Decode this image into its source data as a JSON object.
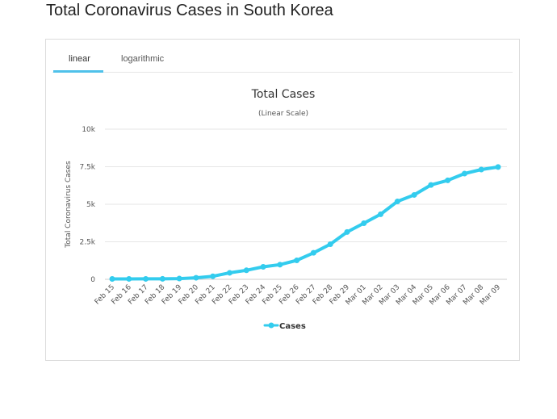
{
  "page": {
    "title": "Total Coronavirus Cases in South Korea"
  },
  "tabs": [
    {
      "label": "linear",
      "active": true
    },
    {
      "label": "logarithmic",
      "active": false
    }
  ],
  "colors": {
    "series": "#33ccee",
    "tab_underline": "#4fc1ea",
    "grid": "#e6e6e6"
  },
  "chart_data": {
    "type": "line",
    "title": "Total Cases",
    "subtitle": "(Linear Scale)",
    "ylabel": "Total Coronavirus Cases",
    "xlabel": "",
    "ylim": [
      0,
      10000
    ],
    "yticks": [
      0,
      2500,
      5000,
      7500,
      10000
    ],
    "ytick_labels": [
      "0",
      "2.5k",
      "5k",
      "7.5k",
      "10k"
    ],
    "grid": true,
    "legend": "bottom-center",
    "categories": [
      "Feb 15",
      "Feb 16",
      "Feb 17",
      "Feb 18",
      "Feb 19",
      "Feb 20",
      "Feb 21",
      "Feb 22",
      "Feb 23",
      "Feb 24",
      "Feb 25",
      "Feb 26",
      "Feb 27",
      "Feb 28",
      "Feb 29",
      "Mar 01",
      "Mar 02",
      "Mar 03",
      "Mar 04",
      "Mar 05",
      "Mar 06",
      "Mar 07",
      "Mar 08",
      "Mar 09"
    ],
    "series": [
      {
        "name": "Cases",
        "values": [
          28,
          29,
          30,
          31,
          51,
          104,
          204,
          433,
          602,
          833,
          977,
          1261,
          1766,
          2337,
          3150,
          3736,
          4335,
          5186,
          5621,
          6284,
          6593,
          7041,
          7313,
          7478
        ]
      }
    ]
  }
}
